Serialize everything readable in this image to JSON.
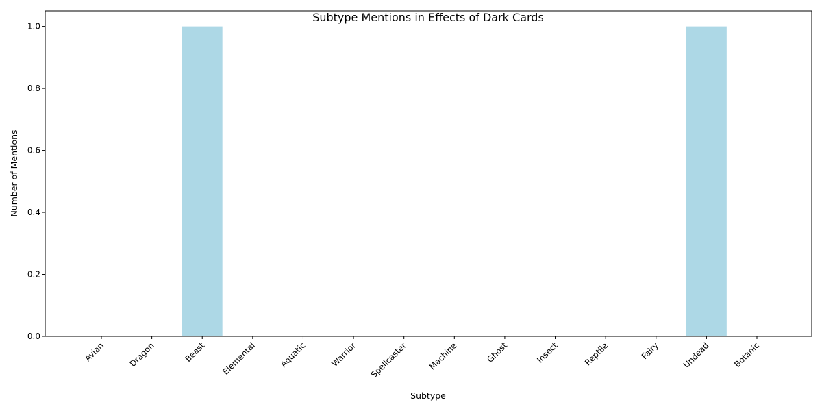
{
  "chart_data": {
    "type": "bar",
    "title": "Subtype Mentions in Effects of Dark Cards",
    "xlabel": "Subtype",
    "ylabel": "Number of Mentions",
    "categories": [
      "Avian",
      "Dragon",
      "Beast",
      "Elemental",
      "Aquatic",
      "Warrior",
      "Spellcaster",
      "Machine",
      "Ghost",
      "Insect",
      "Reptile",
      "Fairy",
      "Undead",
      "Botanic"
    ],
    "values": [
      0,
      0,
      1,
      0,
      0,
      0,
      0,
      0,
      0,
      0,
      0,
      0,
      1,
      0
    ],
    "ylim": [
      0,
      1.05
    ],
    "yticks": [
      "0.0",
      "0.2",
      "0.4",
      "0.6",
      "0.8",
      "1.0"
    ],
    "bar_color": "#add8e6",
    "grid": false,
    "legend": "none"
  }
}
